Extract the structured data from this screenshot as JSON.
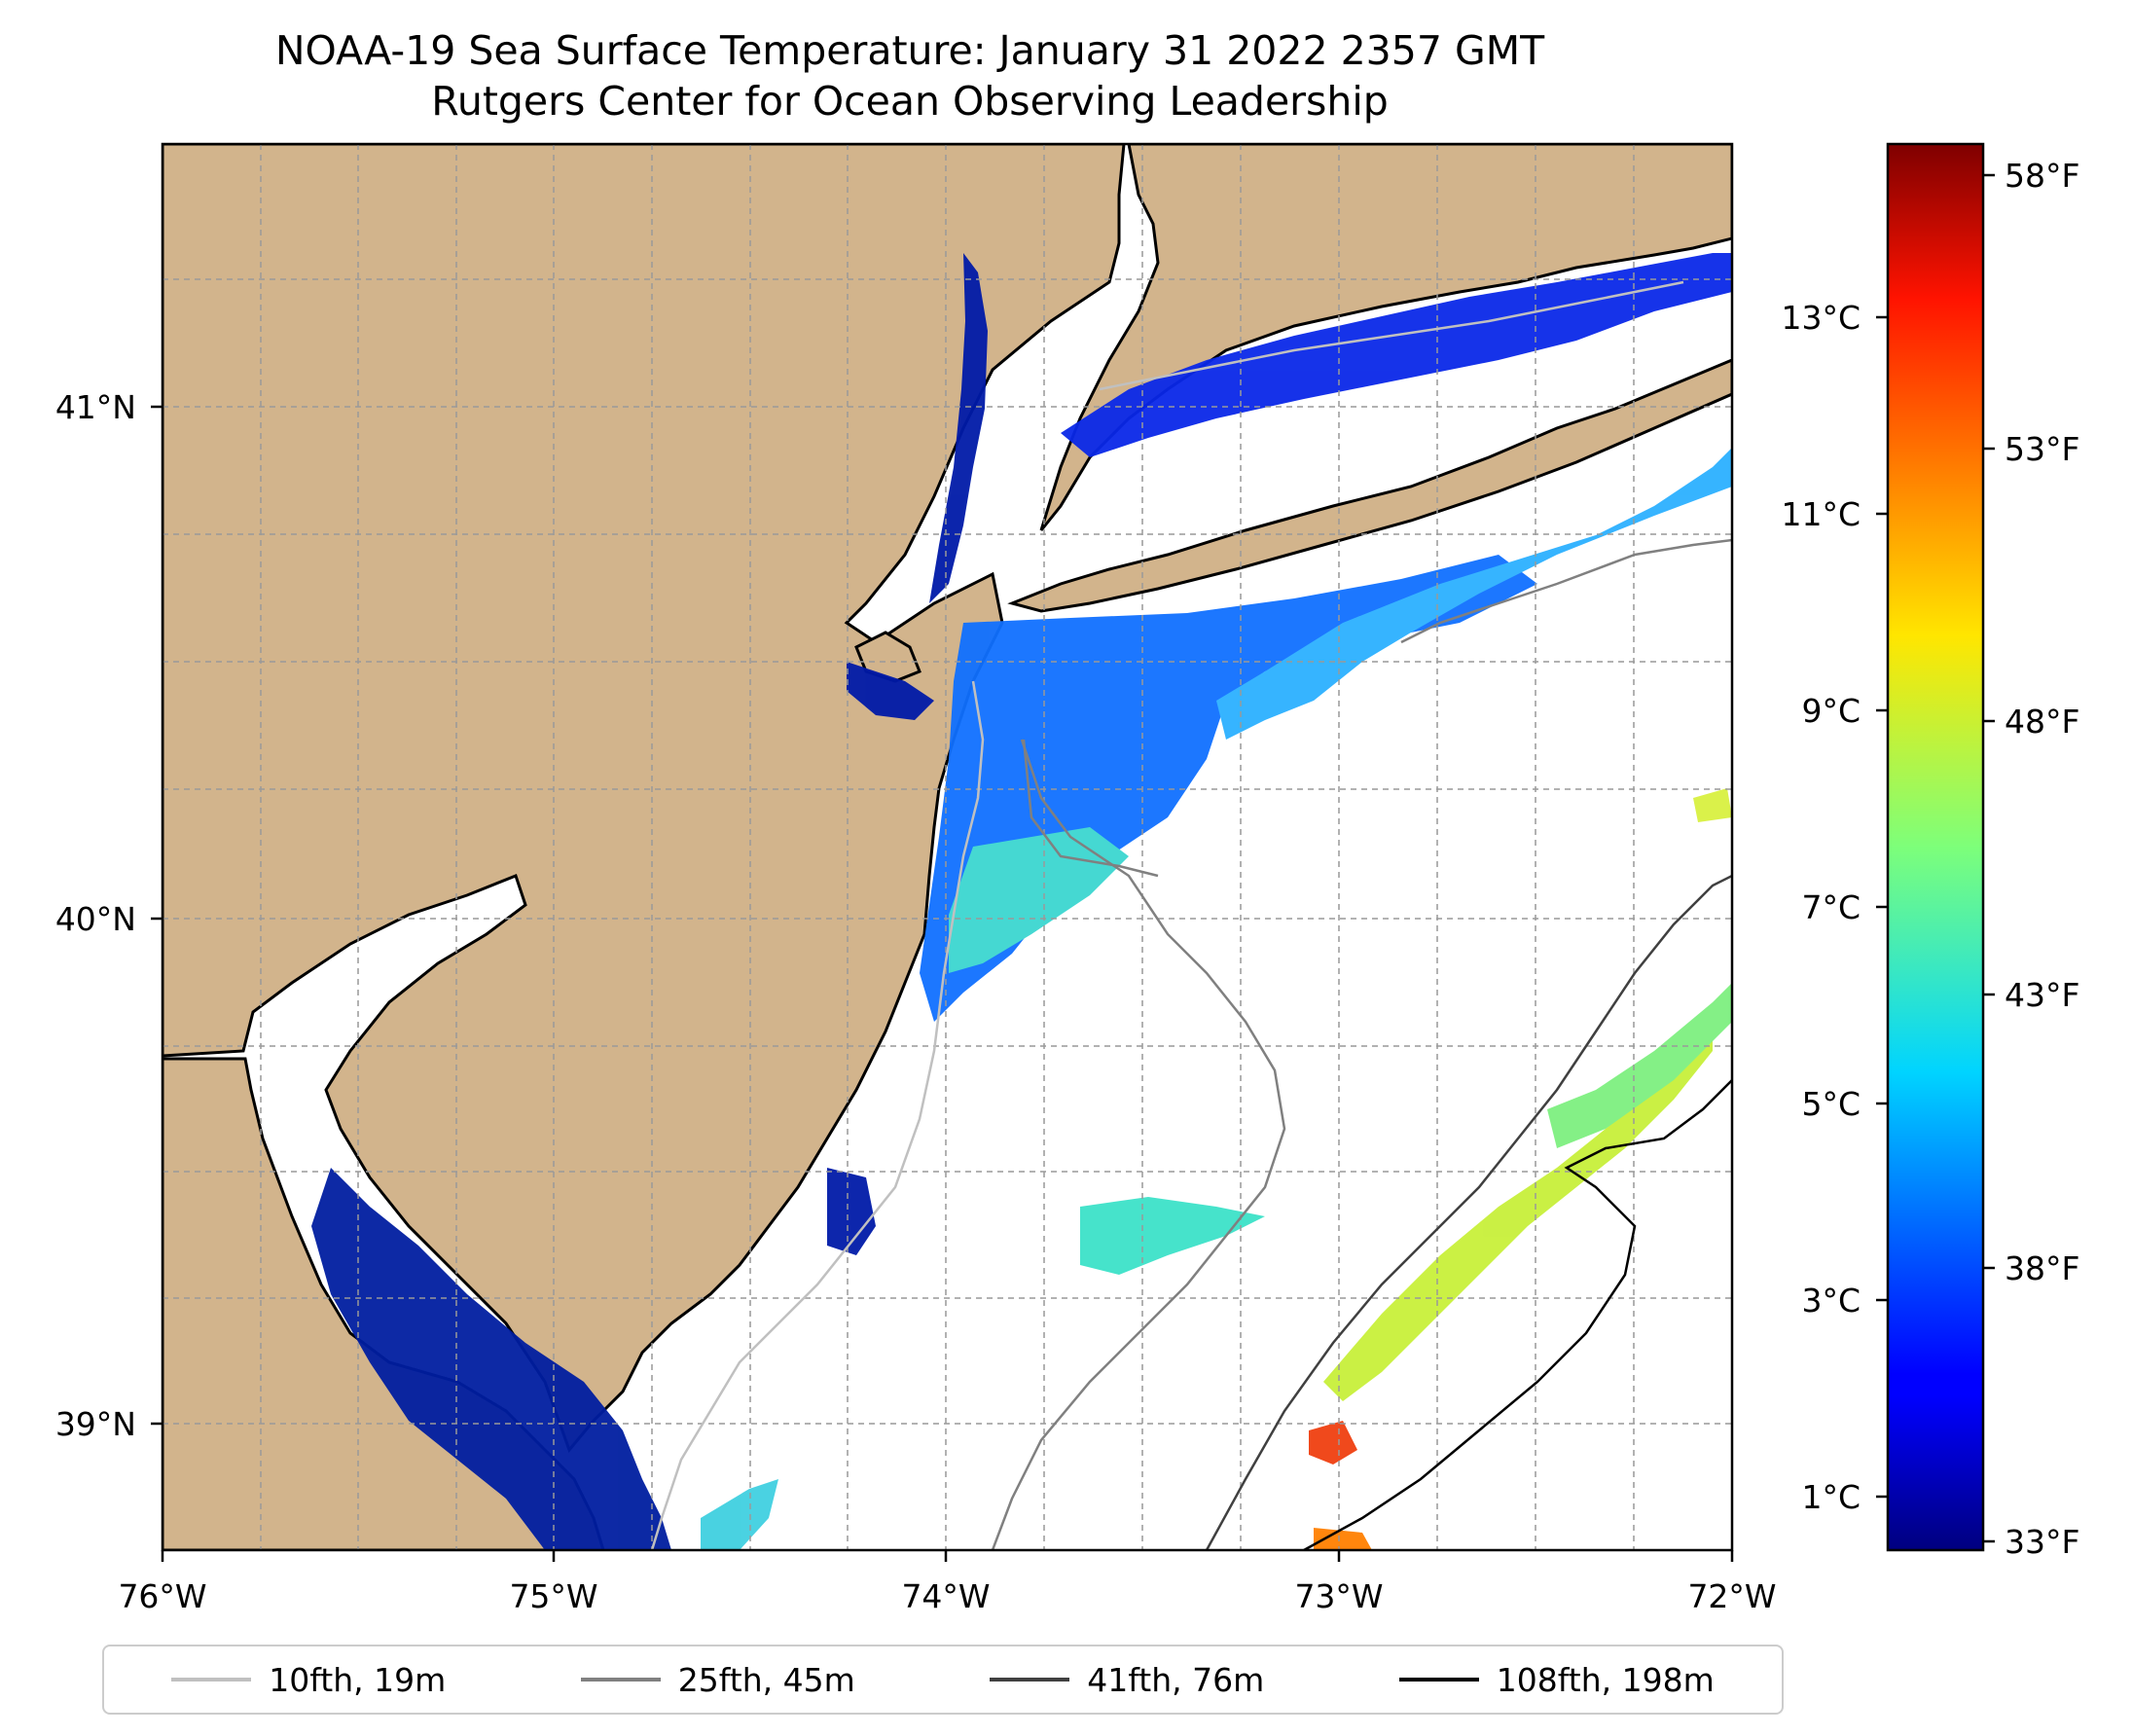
{
  "title": {
    "line1": "NOAA-19 Sea Surface Temperature: January 31 2022 2357 GMT",
    "line2": "Rutgers Center for Ocean Observing Leadership"
  },
  "map": {
    "lon_labels": [
      "76°W",
      "75°W",
      "74°W",
      "73°W",
      "72°W"
    ],
    "lat_labels": [
      "41°N",
      "40°N",
      "39°N"
    ],
    "land_color": "#d2b48c",
    "grid": true
  },
  "colorbar": {
    "colormap": "jet",
    "celsius_labels": [
      "13°C",
      "11°C",
      "9°C",
      "7°C",
      "5°C",
      "3°C",
      "1°C"
    ],
    "fahrenheit_labels": [
      "58°F",
      "53°F",
      "48°F",
      "43°F",
      "38°F",
      "33°F"
    ]
  },
  "legend": {
    "placement": "bottom",
    "items": [
      {
        "label": "10fth, 19m",
        "color": "#c0c0c0"
      },
      {
        "label": "25fth, 45m",
        "color": "#808080"
      },
      {
        "label": "41fth, 76m",
        "color": "#404040"
      },
      {
        "label": "108fth, 198m",
        "color": "#000000"
      }
    ]
  }
}
